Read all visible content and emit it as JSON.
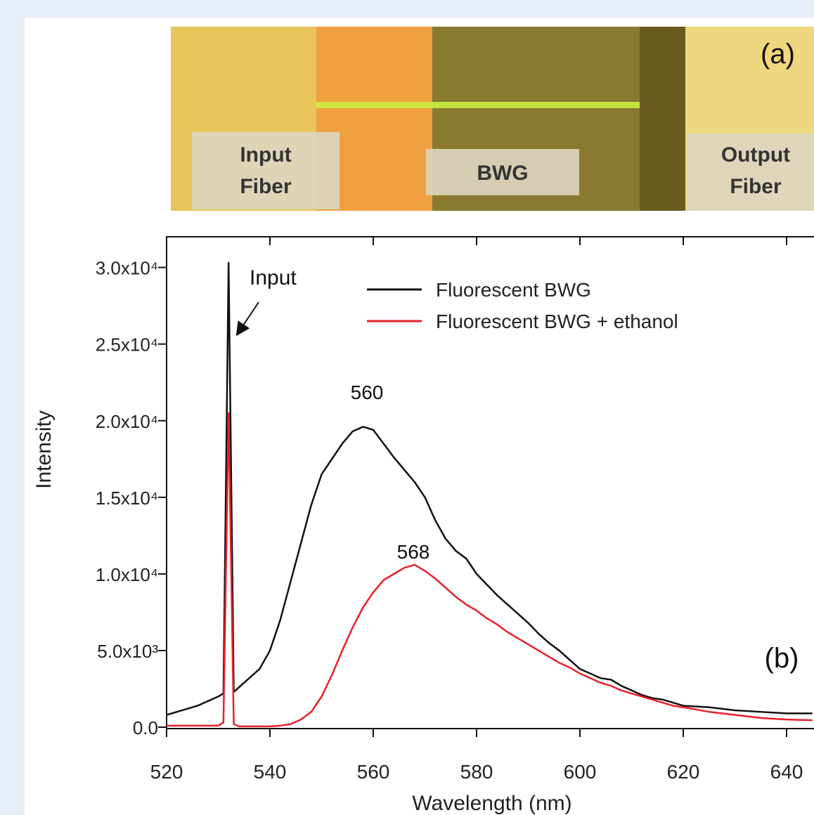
{
  "photo": {
    "label": "(a)",
    "input": [
      "Input",
      "Fiber"
    ],
    "bwg": "BWG",
    "output": [
      "Output",
      "Fiber"
    ]
  },
  "chart_data": {
    "type": "line",
    "xlabel": "Wavelength (nm)",
    "ylabel": "Intensity",
    "annotations": [
      "Input",
      "560",
      "568",
      "(b)"
    ],
    "x": [
      520,
      522,
      524,
      526,
      528,
      530,
      531,
      532,
      533,
      534,
      536,
      538,
      540,
      542,
      544,
      546,
      548,
      550,
      552,
      554,
      556,
      558,
      560,
      562,
      564,
      566,
      568,
      570,
      572,
      574,
      576,
      578,
      580,
      582,
      584,
      586,
      588,
      590,
      592,
      594,
      596,
      598,
      600,
      602,
      604,
      606,
      608,
      610,
      612,
      614,
      616,
      618,
      620,
      625,
      630,
      635,
      640,
      645
    ],
    "series": [
      {
        "name": "Fluorescent  BWG",
        "color": "#111111",
        "values": [
          800,
          1000,
          1200,
          1400,
          1700,
          2000,
          2200,
          30300,
          2300,
          2600,
          3200,
          3800,
          5000,
          7000,
          9500,
          12000,
          14500,
          16500,
          17500,
          18500,
          19300,
          19600,
          19400,
          18500,
          17600,
          16800,
          16000,
          15000,
          13500,
          12300,
          11500,
          11000,
          10000,
          9300,
          8600,
          8000,
          7400,
          6800,
          6100,
          5500,
          5000,
          4400,
          3800,
          3500,
          3200,
          3100,
          2700,
          2400,
          2100,
          1900,
          1800,
          1600,
          1400,
          1300,
          1100,
          1000,
          900,
          900
        ]
      },
      {
        "name": "Fluorescent  BWG + ethanol",
        "color": "#e8202a",
        "values": [
          100,
          100,
          100,
          100,
          100,
          100,
          300,
          20500,
          200,
          50,
          50,
          50,
          50,
          100,
          200,
          500,
          1000,
          2000,
          3400,
          5000,
          6500,
          7800,
          8800,
          9600,
          10000,
          10400,
          10600,
          10200,
          9700,
          9100,
          8500,
          8000,
          7600,
          7100,
          6700,
          6200,
          5800,
          5400,
          5000,
          4600,
          4200,
          3900,
          3500,
          3200,
          2900,
          2700,
          2400,
          2200,
          2000,
          1800,
          1600,
          1400,
          1300,
          1000,
          800,
          600,
          500,
          450
        ]
      }
    ],
    "xlim": [
      520,
      645
    ],
    "xticks": [
      520,
      540,
      560,
      580,
      600,
      620,
      640
    ],
    "ylim": [
      0,
      32000
    ],
    "yticks": [
      {
        "value": 0,
        "label": "0.0"
      },
      {
        "value": 5000,
        "label": "5.0x10³"
      },
      {
        "value": 10000,
        "label": "1.0x10⁴"
      },
      {
        "value": 15000,
        "label": "1.5x10⁴"
      },
      {
        "value": 20000,
        "label": "2.0x10⁴"
      },
      {
        "value": 25000,
        "label": "2.5x10⁴"
      },
      {
        "value": 30000,
        "label": "3.0x10⁴"
      }
    ]
  }
}
